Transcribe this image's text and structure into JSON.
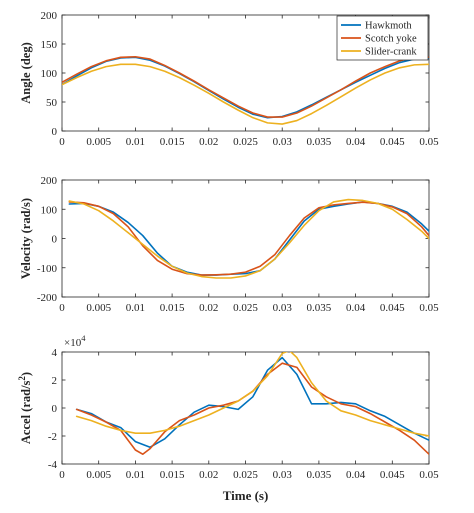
{
  "colors": {
    "hawkmoth": "#0072BD",
    "scotch": "#D95319",
    "slider": "#EDB120",
    "axis": "#262626"
  },
  "chart_data": [
    {
      "type": "line",
      "ylabel": "Angle (deg)",
      "xlim": [
        0,
        0.05
      ],
      "ylim": [
        0,
        200
      ],
      "xticks": [
        0,
        0.005,
        0.01,
        0.015,
        0.02,
        0.025,
        0.03,
        0.035,
        0.04,
        0.045,
        0.05
      ],
      "xtick_labels": [
        "0",
        "0.005",
        "0.01",
        "0.015",
        "0.02",
        "0.025",
        "0.03",
        "0.035",
        "0.04",
        "0.045",
        "0.05"
      ],
      "yticks": [
        0,
        50,
        100,
        150,
        200
      ],
      "ytick_labels": [
        "0",
        "50",
        "100",
        "150",
        "200"
      ],
      "legend": {
        "position": "top-right",
        "entries": [
          "Hawkmoth",
          "Scotch yoke",
          "Slider-crank"
        ]
      },
      "series": [
        {
          "name": "Hawkmoth",
          "color": "#0072BD",
          "x": [
            0,
            0.002,
            0.004,
            0.006,
            0.008,
            0.01,
            0.012,
            0.014,
            0.016,
            0.018,
            0.02,
            0.022,
            0.024,
            0.026,
            0.028,
            0.03,
            0.032,
            0.034,
            0.036,
            0.038,
            0.04,
            0.042,
            0.044,
            0.046,
            0.048,
            0.05
          ],
          "y": [
            80,
            95,
            109,
            120,
            126,
            127,
            122,
            112,
            99,
            85,
            70,
            55,
            41,
            29,
            23,
            25,
            33,
            45,
            58,
            71,
            84,
            96,
            108,
            118,
            124,
            125
          ]
        },
        {
          "name": "Scotch yoke",
          "color": "#D95319",
          "x": [
            0,
            0.002,
            0.004,
            0.006,
            0.008,
            0.01,
            0.012,
            0.014,
            0.016,
            0.018,
            0.02,
            0.022,
            0.024,
            0.026,
            0.028,
            0.03,
            0.032,
            0.034,
            0.036,
            0.038,
            0.04,
            0.042,
            0.044,
            0.046,
            0.048,
            0.05
          ],
          "y": [
            84,
            98,
            111,
            121,
            127,
            128,
            124,
            113,
            100,
            86,
            71,
            57,
            43,
            31,
            24,
            24,
            31,
            43,
            57,
            71,
            86,
            100,
            111,
            121,
            127,
            127
          ]
        },
        {
          "name": "Slider-crank",
          "color": "#EDB120",
          "x": [
            0,
            0.002,
            0.004,
            0.006,
            0.008,
            0.01,
            0.012,
            0.014,
            0.016,
            0.018,
            0.02,
            0.022,
            0.024,
            0.026,
            0.028,
            0.03,
            0.032,
            0.034,
            0.036,
            0.038,
            0.04,
            0.042,
            0.044,
            0.046,
            0.048,
            0.05
          ],
          "y": [
            80,
            92,
            103,
            111,
            115,
            115,
            111,
            103,
            92,
            79,
            65,
            50,
            36,
            23,
            14,
            12,
            18,
            30,
            44,
            59,
            74,
            88,
            100,
            109,
            114,
            115
          ]
        }
      ]
    },
    {
      "type": "line",
      "ylabel": "Velocity (rad/s)",
      "xlim": [
        0,
        0.05
      ],
      "ylim": [
        -200,
        200
      ],
      "xticks": [
        0,
        0.005,
        0.01,
        0.015,
        0.02,
        0.025,
        0.03,
        0.035,
        0.04,
        0.045,
        0.05
      ],
      "xtick_labels": [
        "0",
        "0.005",
        "0.01",
        "0.015",
        "0.02",
        "0.025",
        "0.03",
        "0.035",
        "0.04",
        "0.045",
        "0.05"
      ],
      "yticks": [
        -200,
        -100,
        0,
        100,
        200
      ],
      "ytick_labels": [
        "-200",
        "-100",
        "0",
        "100",
        "200"
      ],
      "series": [
        {
          "name": "Hawkmoth",
          "color": "#0072BD",
          "x": [
            0.001,
            0.003,
            0.005,
            0.007,
            0.009,
            0.011,
            0.013,
            0.015,
            0.017,
            0.019,
            0.021,
            0.023,
            0.025,
            0.027,
            0.029,
            0.031,
            0.033,
            0.035,
            0.037,
            0.039,
            0.041,
            0.043,
            0.045,
            0.047,
            0.049,
            0.05
          ],
          "y": [
            118,
            120,
            110,
            90,
            55,
            10,
            -50,
            -95,
            -115,
            -125,
            -125,
            -122,
            -120,
            -110,
            -70,
            -5,
            60,
            100,
            110,
            118,
            125,
            120,
            110,
            90,
            50,
            25
          ]
        },
        {
          "name": "Scotch yoke",
          "color": "#D95319",
          "x": [
            0.001,
            0.003,
            0.005,
            0.007,
            0.009,
            0.011,
            0.013,
            0.015,
            0.017,
            0.019,
            0.021,
            0.023,
            0.025,
            0.027,
            0.029,
            0.031,
            0.033,
            0.035,
            0.037,
            0.039,
            0.041,
            0.043,
            0.045,
            0.047,
            0.049,
            0.05
          ],
          "y": [
            125,
            122,
            110,
            85,
            40,
            -25,
            -75,
            -105,
            -120,
            -125,
            -124,
            -122,
            -115,
            -95,
            -55,
            10,
            70,
            105,
            115,
            120,
            124,
            120,
            108,
            85,
            40,
            10
          ]
        },
        {
          "name": "Slider-crank",
          "color": "#EDB120",
          "x": [
            0.001,
            0.003,
            0.005,
            0.007,
            0.009,
            0.011,
            0.013,
            0.015,
            0.017,
            0.019,
            0.021,
            0.023,
            0.025,
            0.027,
            0.029,
            0.031,
            0.033,
            0.035,
            0.037,
            0.039,
            0.041,
            0.043,
            0.045,
            0.047,
            0.049,
            0.05
          ],
          "y": [
            128,
            118,
            95,
            60,
            20,
            -20,
            -60,
            -95,
            -118,
            -130,
            -135,
            -135,
            -128,
            -110,
            -70,
            -15,
            45,
            95,
            125,
            133,
            130,
            120,
            100,
            65,
            25,
            0
          ]
        }
      ]
    },
    {
      "type": "line",
      "ylabel": "Accel (rad/s",
      "ylabel_superscript": "2",
      "ylabel_end": ")",
      "xlabel": "Time (s)",
      "exponent_label": "×10",
      "exponent_power": "4",
      "xlim": [
        0,
        0.05
      ],
      "ylim": [
        -4,
        4
      ],
      "xticks": [
        0,
        0.005,
        0.01,
        0.015,
        0.02,
        0.025,
        0.03,
        0.035,
        0.04,
        0.045,
        0.05
      ],
      "xtick_labels": [
        "0",
        "0.005",
        "0.01",
        "0.015",
        "0.02",
        "0.025",
        "0.03",
        "0.035",
        "0.04",
        "0.045",
        "0.05"
      ],
      "yticks": [
        -4,
        -2,
        0,
        2,
        4
      ],
      "ytick_labels": [
        "-4",
        "-2",
        "0",
        "2",
        "4"
      ],
      "series": [
        {
          "name": "Hawkmoth",
          "color": "#0072BD",
          "x": [
            0.002,
            0.004,
            0.006,
            0.008,
            0.01,
            0.012,
            0.014,
            0.016,
            0.018,
            0.02,
            0.022,
            0.024,
            0.026,
            0.028,
            0.03,
            0.032,
            0.034,
            0.036,
            0.038,
            0.04,
            0.042,
            0.044,
            0.046,
            0.048,
            0.05
          ],
          "y": [
            -0.1,
            -0.4,
            -1.0,
            -1.4,
            -2.4,
            -2.8,
            -2.2,
            -1.2,
            -0.3,
            0.2,
            0.1,
            -0.1,
            0.8,
            2.7,
            3.6,
            2.4,
            0.3,
            0.3,
            0.4,
            0.3,
            -0.2,
            -0.6,
            -1.2,
            -1.8,
            -2.3
          ]
        },
        {
          "name": "Scotch yoke",
          "color": "#D95319",
          "x": [
            0.002,
            0.004,
            0.006,
            0.008,
            0.01,
            0.011,
            0.012,
            0.014,
            0.016,
            0.018,
            0.02,
            0.022,
            0.024,
            0.026,
            0.028,
            0.03,
            0.032,
            0.034,
            0.036,
            0.038,
            0.04,
            0.042,
            0.044,
            0.046,
            0.048,
            0.05
          ],
          "y": [
            -0.1,
            -0.5,
            -1.0,
            -1.6,
            -3.0,
            -3.3,
            -2.9,
            -1.7,
            -0.9,
            -0.5,
            0.0,
            0.2,
            0.5,
            1.2,
            2.4,
            3.2,
            2.9,
            1.5,
            0.8,
            0.3,
            0.1,
            -0.4,
            -1.0,
            -1.6,
            -2.3,
            -3.3
          ]
        },
        {
          "name": "Slider-crank",
          "color": "#EDB120",
          "x": [
            0.002,
            0.004,
            0.006,
            0.008,
            0.01,
            0.012,
            0.014,
            0.016,
            0.018,
            0.02,
            0.022,
            0.024,
            0.026,
            0.028,
            0.03,
            0.031,
            0.032,
            0.034,
            0.036,
            0.038,
            0.04,
            0.042,
            0.044,
            0.046,
            0.048,
            0.05
          ],
          "y": [
            -0.6,
            -0.9,
            -1.3,
            -1.6,
            -1.8,
            -1.8,
            -1.6,
            -1.3,
            -0.9,
            -0.5,
            0.0,
            0.5,
            1.2,
            2.3,
            3.9,
            4.1,
            3.6,
            1.8,
            0.5,
            -0.2,
            -0.5,
            -0.9,
            -1.2,
            -1.5,
            -1.8,
            -2.0
          ]
        }
      ]
    }
  ]
}
